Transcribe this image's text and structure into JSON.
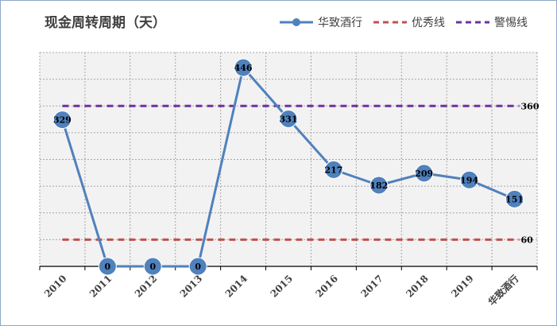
{
  "chart_data": {
    "type": "line",
    "title": "现金周转周期（天）",
    "categories": [
      "2010",
      "2011",
      "2012",
      "2013",
      "2014",
      "2015",
      "2016",
      "2017",
      "2018",
      "2019",
      "华致酒行"
    ],
    "series": [
      {
        "name": "华致酒行",
        "values": [
          329,
          0,
          0,
          0,
          446,
          331,
          217,
          182,
          209,
          194,
          151
        ],
        "data_labels": [
          "329",
          "0",
          "0",
          "0",
          "446",
          "331",
          "217",
          "182",
          "209",
          "194",
          "151"
        ],
        "color": "#4f81bd",
        "style": "line-with-markers"
      }
    ],
    "reference_lines": [
      {
        "name": "优秀线",
        "value": 60,
        "label": "60",
        "color": "#c0504d",
        "style": "dashed"
      },
      {
        "name": "警惕线",
        "value": 360,
        "label": "360",
        "color": "#7030a0",
        "style": "dashed"
      }
    ],
    "ylim": [
      0,
      480
    ],
    "y_axis_visible": false,
    "grid": "dashed",
    "legend_position": "top-right"
  },
  "colors": {
    "plot_background": "#f2f2f2",
    "gridline": "#a6a6a6",
    "axis": "#000000",
    "label_text": "#404040"
  }
}
